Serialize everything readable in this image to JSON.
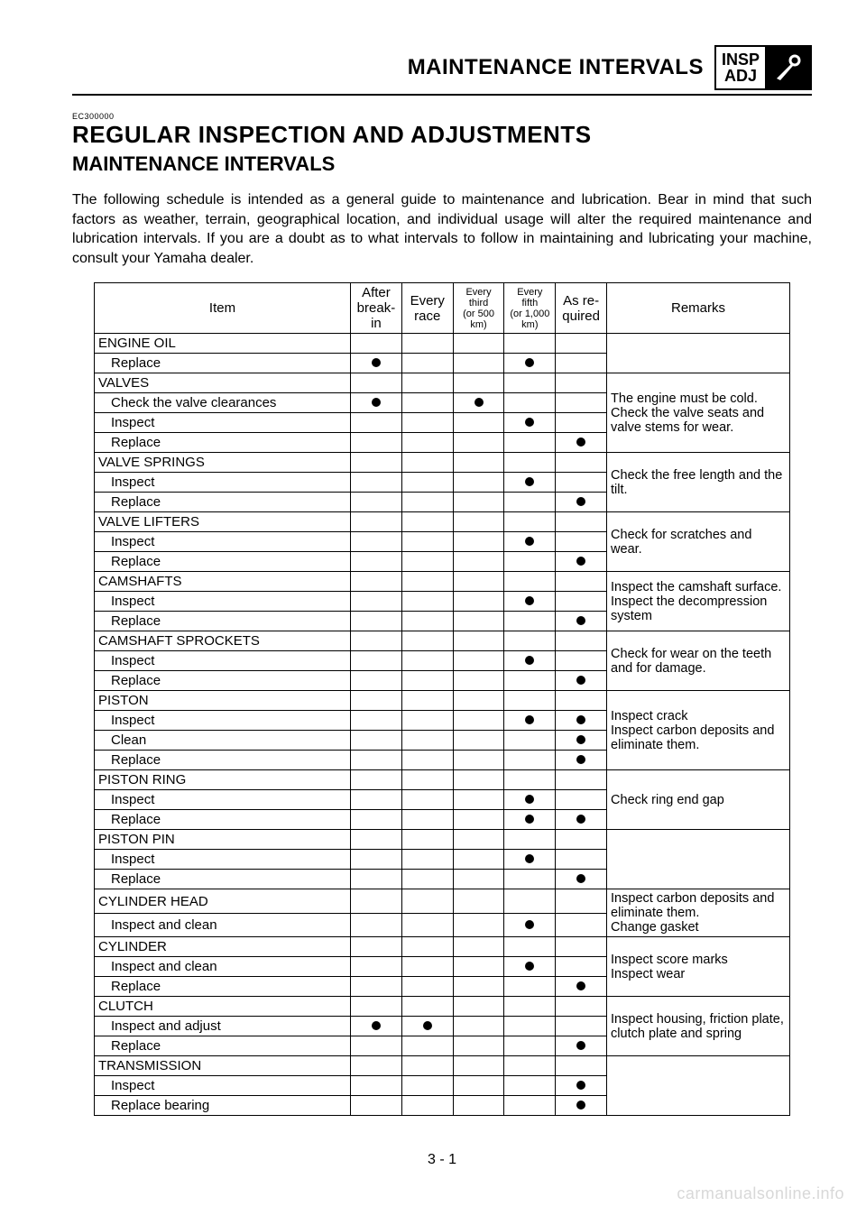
{
  "header": {
    "title": "MAINTENANCE INTERVALS",
    "badge_top": "INSP",
    "badge_bottom": "ADJ"
  },
  "code": "EC300000",
  "h1": "REGULAR INSPECTION AND ADJUSTMENTS",
  "h2": "MAINTENANCE INTERVALS",
  "intro": "The following schedule is intended as a general guide to maintenance and lubrication. Bear in mind that such factors as weather, terrain, geographical location, and individual usage will alter the required maintenance and lubrication intervals. If you are a doubt as to what intervals to follow in maintaining and lubricating your machine, consult your Yamaha dealer.",
  "columns": {
    "item": "Item",
    "after": "After break-in",
    "race": "Every race",
    "third_top": "Every third",
    "third_sub": "(or 500 km)",
    "fifth_top": "Every fifth",
    "fifth_sub": "(or 1,000 km)",
    "asreq": "As re-quired",
    "remarks": "Remarks"
  },
  "groups": [
    {
      "name": "ENGINE OIL",
      "remarks": "",
      "rows": [
        {
          "action": "Replace",
          "marks": [
            true,
            false,
            false,
            true,
            false
          ]
        }
      ]
    },
    {
      "name": "VALVES",
      "remarks": "The engine must be cold. Check the valve seats and valve stems for wear.",
      "rows": [
        {
          "action": "Check the valve clearances",
          "marks": [
            true,
            false,
            true,
            false,
            false
          ]
        },
        {
          "action": "Inspect",
          "marks": [
            false,
            false,
            false,
            true,
            false
          ]
        },
        {
          "action": "Replace",
          "marks": [
            false,
            false,
            false,
            false,
            true
          ]
        }
      ]
    },
    {
      "name": "VALVE SPRINGS",
      "remarks": "Check the free length and the tilt.",
      "rows": [
        {
          "action": "Inspect",
          "marks": [
            false,
            false,
            false,
            true,
            false
          ]
        },
        {
          "action": "Replace",
          "marks": [
            false,
            false,
            false,
            false,
            true
          ]
        }
      ]
    },
    {
      "name": "VALVE LIFTERS",
      "remarks": "Check for scratches and wear.",
      "rows": [
        {
          "action": "Inspect",
          "marks": [
            false,
            false,
            false,
            true,
            false
          ]
        },
        {
          "action": "Replace",
          "marks": [
            false,
            false,
            false,
            false,
            true
          ]
        }
      ]
    },
    {
      "name": "CAMSHAFTS",
      "remarks": "Inspect the camshaft surface.\nInspect the decompression system",
      "rows": [
        {
          "action": "Inspect",
          "marks": [
            false,
            false,
            false,
            true,
            false
          ]
        },
        {
          "action": "Replace",
          "marks": [
            false,
            false,
            false,
            false,
            true
          ]
        }
      ]
    },
    {
      "name": "CAMSHAFT SPROCKETS",
      "remarks": "Check for wear on the teeth and for damage.",
      "rows": [
        {
          "action": "Inspect",
          "marks": [
            false,
            false,
            false,
            true,
            false
          ]
        },
        {
          "action": "Replace",
          "marks": [
            false,
            false,
            false,
            false,
            true
          ]
        }
      ]
    },
    {
      "name": "PISTON",
      "remarks": "Inspect crack\nInspect carbon deposits and eliminate them.",
      "rows": [
        {
          "action": "Inspect",
          "marks": [
            false,
            false,
            false,
            true,
            true
          ]
        },
        {
          "action": "Clean",
          "marks": [
            false,
            false,
            false,
            false,
            true
          ]
        },
        {
          "action": "Replace",
          "marks": [
            false,
            false,
            false,
            false,
            true
          ]
        }
      ]
    },
    {
      "name": "PISTON RING",
      "remarks": "Check ring end gap",
      "rows": [
        {
          "action": "Inspect",
          "marks": [
            false,
            false,
            false,
            true,
            false
          ]
        },
        {
          "action": "Replace",
          "marks": [
            false,
            false,
            false,
            true,
            true
          ]
        }
      ]
    },
    {
      "name": "PISTON PIN",
      "remarks": "",
      "rows": [
        {
          "action": "Inspect",
          "marks": [
            false,
            false,
            false,
            true,
            false
          ]
        },
        {
          "action": "Replace",
          "marks": [
            false,
            false,
            false,
            false,
            true
          ]
        }
      ]
    },
    {
      "name": "CYLINDER HEAD",
      "remarks": "Inspect carbon deposits and eliminate them.\nChange gasket",
      "rows": [
        {
          "action": "Inspect and clean",
          "marks": [
            false,
            false,
            false,
            true,
            false
          ]
        }
      ]
    },
    {
      "name": "CYLINDER",
      "remarks": "Inspect score marks\nInspect wear",
      "rows": [
        {
          "action": "Inspect and clean",
          "marks": [
            false,
            false,
            false,
            true,
            false
          ]
        },
        {
          "action": "Replace",
          "marks": [
            false,
            false,
            false,
            false,
            true
          ]
        }
      ]
    },
    {
      "name": "CLUTCH",
      "remarks": "Inspect housing, friction plate, clutch plate and spring",
      "rows": [
        {
          "action": "Inspect and adjust",
          "marks": [
            true,
            true,
            false,
            false,
            false
          ]
        },
        {
          "action": "Replace",
          "marks": [
            false,
            false,
            false,
            false,
            true
          ]
        }
      ]
    },
    {
      "name": "TRANSMISSION",
      "remarks": "",
      "rows": [
        {
          "action": "Inspect",
          "marks": [
            false,
            false,
            false,
            false,
            true
          ]
        },
        {
          "action": "Replace bearing",
          "marks": [
            false,
            false,
            false,
            false,
            true
          ]
        }
      ]
    }
  ],
  "page_num": "3 - 1",
  "watermark": "carmanualsonline.info"
}
